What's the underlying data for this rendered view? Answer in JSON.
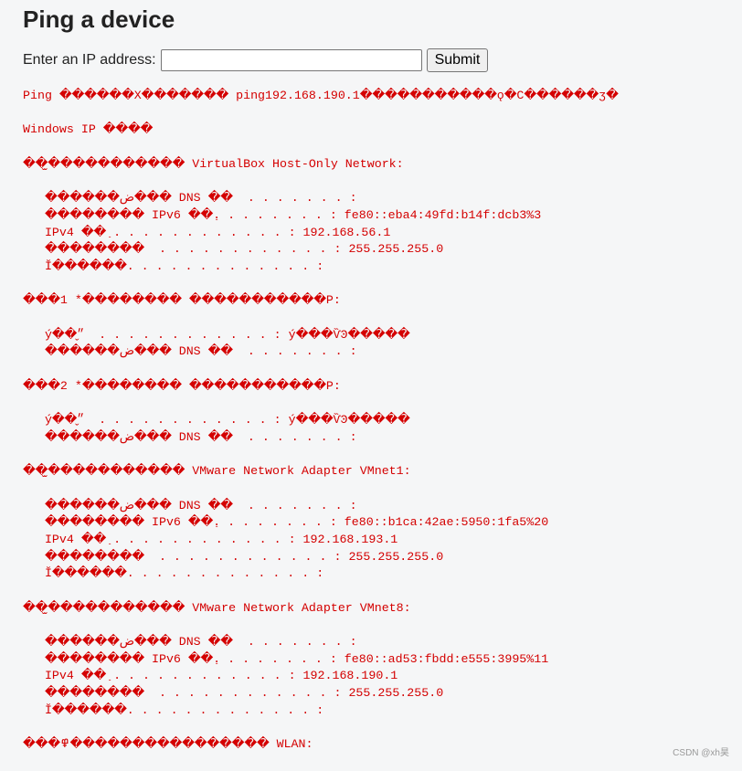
{
  "header": {
    "title": "Ping a device"
  },
  "form": {
    "label": "Enter an IP address:",
    "button": "Submit"
  },
  "output": {
    "blocks": [
      [
        "Ping ������X������� ping192.168.190.1�����������ǫ�C������ӡ�"
      ],
      [
        "Windows IP ����"
      ],
      [
        "��̫����������� VirtualBox Host-Only Network:"
      ],
      [
        "   ������ض��� DNS ��  . . . . . . . :",
        "   �������� IPv6 ��ַ. . . . . . . . : fe80::eba4:49fd:b14f:dcb3%3",
        "   IPv4 ��ַ . . . . . . . . . . . . : 192.168.56.1",
        "   ��������  . . . . . . . . . . . . : 255.255.255.0",
        "   Ĭ������. . . . . . . . . . . . . :"
      ],
      [
        "���1 *�������� �����������Ρ:"
      ],
      [
        "   ý��״̬  . . . . . . . . . . . . : ý���ѶϿ�����",
        "   ������ض��� DNS ��  . . . . . . . :"
      ],
      [
        "���2 *�������� �����������Ρ:"
      ],
      [
        "   ý��״̬  . . . . . . . . . . . . : ý���ѶϿ�����",
        "   ������ض��� DNS ��  . . . . . . . :"
      ],
      [
        "��̫����������� VMware Network Adapter VMnet1:"
      ],
      [
        "   ������ض��� DNS ��  . . . . . . . :",
        "   �������� IPv6 ��ַ. . . . . . . . : fe80::b1ca:42ae:5950:1fa5%20",
        "   IPv4 ��ַ . . . . . . . . . . . . : 192.168.193.1",
        "   ��������  . . . . . . . . . . . . : 255.255.255.0",
        "   Ĭ������. . . . . . . . . . . . . :"
      ],
      [
        "��̫����������� VMware Network Adapter VMnet8:"
      ],
      [
        "   ������ض��� DNS ��  . . . . . . . :",
        "   �������� IPv6 ��ַ. . . . . . . . : fe80::ad53:fbdd:e555:3995%11",
        "   IPv4 ��ַ . . . . . . . . . . . . : 192.168.190.1",
        "   ��������  . . . . . . . . . . . . : 255.255.255.0",
        "   Ĭ������. . . . . . . . . . . . . :"
      ],
      [
        "���߾���������������� WLAN:"
      ]
    ]
  },
  "watermark": "CSDN @xh昊"
}
